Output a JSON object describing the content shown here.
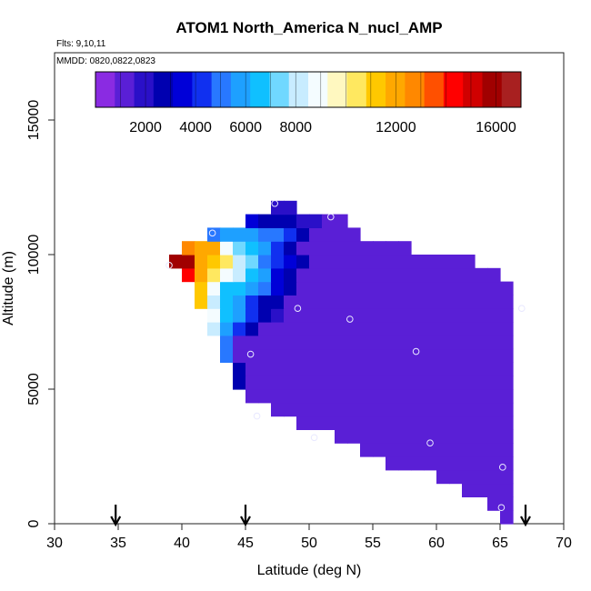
{
  "chart_data": {
    "type": "heatmap",
    "title": "ATOM1 North_America N_nucl_AMP",
    "flights_label": "Flts: 9,10,11",
    "mmdd_label": "MMDD: 0820,0822,0823",
    "xlabel": "Latitude (deg N)",
    "ylabel": "Altitude (m)",
    "xlim": [
      30,
      70
    ],
    "ylim": [
      0,
      17500
    ],
    "x_ticks": [
      30,
      35,
      40,
      45,
      50,
      55,
      60,
      65,
      70
    ],
    "y_ticks": [
      0,
      5000,
      10000,
      15000
    ],
    "grid": false,
    "cell_width_deg": 1,
    "cell_height_m": 500,
    "colorbar": {
      "placement": "top",
      "min": 0,
      "max": 17000,
      "tick_values": [
        2000,
        4000,
        6000,
        8000,
        12000,
        16000
      ],
      "colors": [
        "#8a2be2",
        "#5a1fd6",
        "#2a10c8",
        "#0000b0",
        "#0000d8",
        "#1030f0",
        "#2878ff",
        "#1ea0ff",
        "#10c0ff",
        "#70d8ff",
        "#c8ecff",
        "#f4fcff",
        "#fff8c0",
        "#ffe860",
        "#ffc800",
        "#ffa800",
        "#ff8800",
        "#ff5000",
        "#ff0000",
        "#d00000",
        "#a00000",
        "#a82020"
      ]
    },
    "arrows_latitude": [
      34.8,
      45.0,
      67.0
    ],
    "grid_cells": [
      {
        "y0": 0,
        "x0": 65,
        "values": [
          900
        ]
      },
      {
        "y0": 500,
        "x0": 64,
        "values": [
          900,
          900
        ]
      },
      {
        "y0": 1000,
        "x0": 62,
        "values": [
          900,
          900,
          900,
          900
        ]
      },
      {
        "y0": 1500,
        "x0": 60,
        "values": [
          900,
          900,
          900,
          900,
          900,
          900
        ]
      },
      {
        "y0": 2000,
        "x0": 56,
        "values": [
          900,
          900,
          900,
          900,
          900,
          900,
          900,
          900,
          900,
          900
        ]
      },
      {
        "y0": 2500,
        "x0": 54,
        "values": [
          900,
          900,
          900,
          900,
          900,
          900,
          900,
          900,
          900,
          900,
          900,
          900
        ]
      },
      {
        "y0": 3000,
        "x0": 52,
        "values": [
          900,
          900,
          900,
          900,
          900,
          900,
          900,
          900,
          900,
          900,
          900,
          900,
          900,
          900
        ]
      },
      {
        "y0": 3500,
        "x0": 49,
        "values": [
          900,
          900,
          900,
          900,
          900,
          900,
          900,
          900,
          900,
          900,
          900,
          900,
          900,
          900,
          900,
          900,
          900
        ]
      },
      {
        "y0": 4000,
        "x0": 47,
        "values": [
          900,
          900,
          900,
          900,
          900,
          900,
          900,
          900,
          900,
          900,
          900,
          900,
          900,
          900,
          900,
          900,
          900,
          900,
          900
        ]
      },
      {
        "y0": 4500,
        "x0": 45,
        "values": [
          900,
          900,
          900,
          900,
          900,
          900,
          900,
          900,
          900,
          900,
          900,
          900,
          900,
          900,
          900,
          900,
          900,
          900,
          900,
          900,
          900
        ]
      },
      {
        "y0": 5000,
        "x0": 44,
        "values": [
          3000,
          900,
          900,
          900,
          900,
          900,
          900,
          900,
          900,
          900,
          900,
          900,
          900,
          900,
          900,
          900,
          900,
          900,
          900,
          900,
          900,
          900
        ]
      },
      {
        "y0": 5500,
        "x0": 44,
        "values": [
          3000,
          900,
          900,
          900,
          900,
          900,
          900,
          900,
          900,
          900,
          900,
          900,
          900,
          900,
          900,
          900,
          900,
          900,
          900,
          900,
          900,
          900
        ]
      },
      {
        "y0": 6000,
        "x0": 43,
        "values": [
          5200,
          900,
          900,
          900,
          900,
          900,
          900,
          900,
          900,
          900,
          900,
          900,
          900,
          900,
          900,
          900,
          900,
          900,
          900,
          900,
          900,
          900,
          900
        ]
      },
      {
        "y0": 6500,
        "x0": 43,
        "values": [
          5200,
          900,
          900,
          900,
          900,
          900,
          900,
          900,
          900,
          900,
          900,
          900,
          900,
          900,
          900,
          900,
          900,
          900,
          900,
          900,
          900,
          900,
          900
        ]
      },
      {
        "y0": 7000,
        "x0": 42,
        "values": [
          8000,
          5500,
          4500,
          2500,
          900,
          900,
          900,
          900,
          900,
          900,
          900,
          900,
          900,
          900,
          900,
          900,
          900,
          900,
          900,
          900,
          900,
          900,
          900,
          900
        ]
      },
      {
        "y0": 7500,
        "x0": 42,
        "values": [
          8500,
          6500,
          5500,
          4200,
          2500,
          1800,
          900,
          900,
          900,
          900,
          900,
          900,
          900,
          900,
          900,
          900,
          900,
          900,
          900,
          900,
          900,
          900,
          900,
          900
        ]
      },
      {
        "y0": 8000,
        "x0": 41,
        "values": [
          11500,
          7800,
          6500,
          5500,
          4500,
          3000,
          2500,
          900,
          900,
          900,
          900,
          900,
          900,
          900,
          900,
          900,
          900,
          900,
          900,
          900,
          900,
          900,
          900,
          900,
          900
        ]
      },
      {
        "y0": 8500,
        "x0": 41,
        "values": [
          11200,
          8500,
          6800,
          6200,
          5500,
          5000,
          3800,
          2500,
          900,
          900,
          900,
          900,
          900,
          900,
          900,
          900,
          900,
          900,
          900,
          900,
          900,
          900,
          900,
          900,
          900
        ]
      },
      {
        "y0": 9000,
        "x0": 40,
        "values": [
          14500,
          11800,
          10200,
          9000,
          7800,
          6200,
          5500,
          3500,
          2500,
          1500,
          1200,
          1200,
          1200,
          1200,
          1200,
          1200,
          1200,
          1200,
          1200,
          1200,
          1200,
          1200,
          1200,
          1200,
          1200
        ]
      },
      {
        "y0": 9500,
        "x0": 39,
        "values": [
          15500,
          15800,
          12000,
          11500,
          10500,
          8300,
          7000,
          5200,
          4000,
          3500,
          2500,
          1500,
          1200,
          1200,
          1200,
          1200,
          1200,
          1200,
          1200,
          1200,
          1200,
          1200,
          1200,
          1200
        ]
      },
      {
        "y0": 10000,
        "x0": 40,
        "values": [
          12800,
          12000,
          11800,
          8600,
          7500,
          6200,
          5500,
          4000,
          2500,
          1500,
          1200,
          1200,
          1200,
          1200,
          1200,
          1200,
          1200,
          1200
        ]
      },
      {
        "y0": 10500,
        "x0": 42,
        "values": [
          5000,
          5500,
          5500,
          5500,
          5000,
          5000,
          4000,
          2500,
          1500,
          1200,
          1200,
          1200
        ]
      },
      {
        "y0": 11000,
        "x0": 45,
        "values": [
          3500,
          2500,
          3000,
          2500,
          1800,
          1800,
          1200,
          1200
        ]
      },
      {
        "y0": 11500,
        "x0": 47,
        "values": [
          1800,
          1800
        ]
      }
    ],
    "flight_points": [
      {
        "lat": 39.0,
        "alt": 9600
      },
      {
        "lat": 42.4,
        "alt": 10800
      },
      {
        "lat": 47.3,
        "alt": 11900
      },
      {
        "lat": 51.7,
        "alt": 11400
      },
      {
        "lat": 49.1,
        "alt": 8000
      },
      {
        "lat": 53.2,
        "alt": 7600
      },
      {
        "lat": 66.7,
        "alt": 8000
      },
      {
        "lat": 58.4,
        "alt": 6400
      },
      {
        "lat": 45.4,
        "alt": 6300
      },
      {
        "lat": 45.9,
        "alt": 4000
      },
      {
        "lat": 50.4,
        "alt": 3200
      },
      {
        "lat": 59.5,
        "alt": 3000
      },
      {
        "lat": 65.2,
        "alt": 2100
      },
      {
        "lat": 65.1,
        "alt": 600
      }
    ]
  }
}
